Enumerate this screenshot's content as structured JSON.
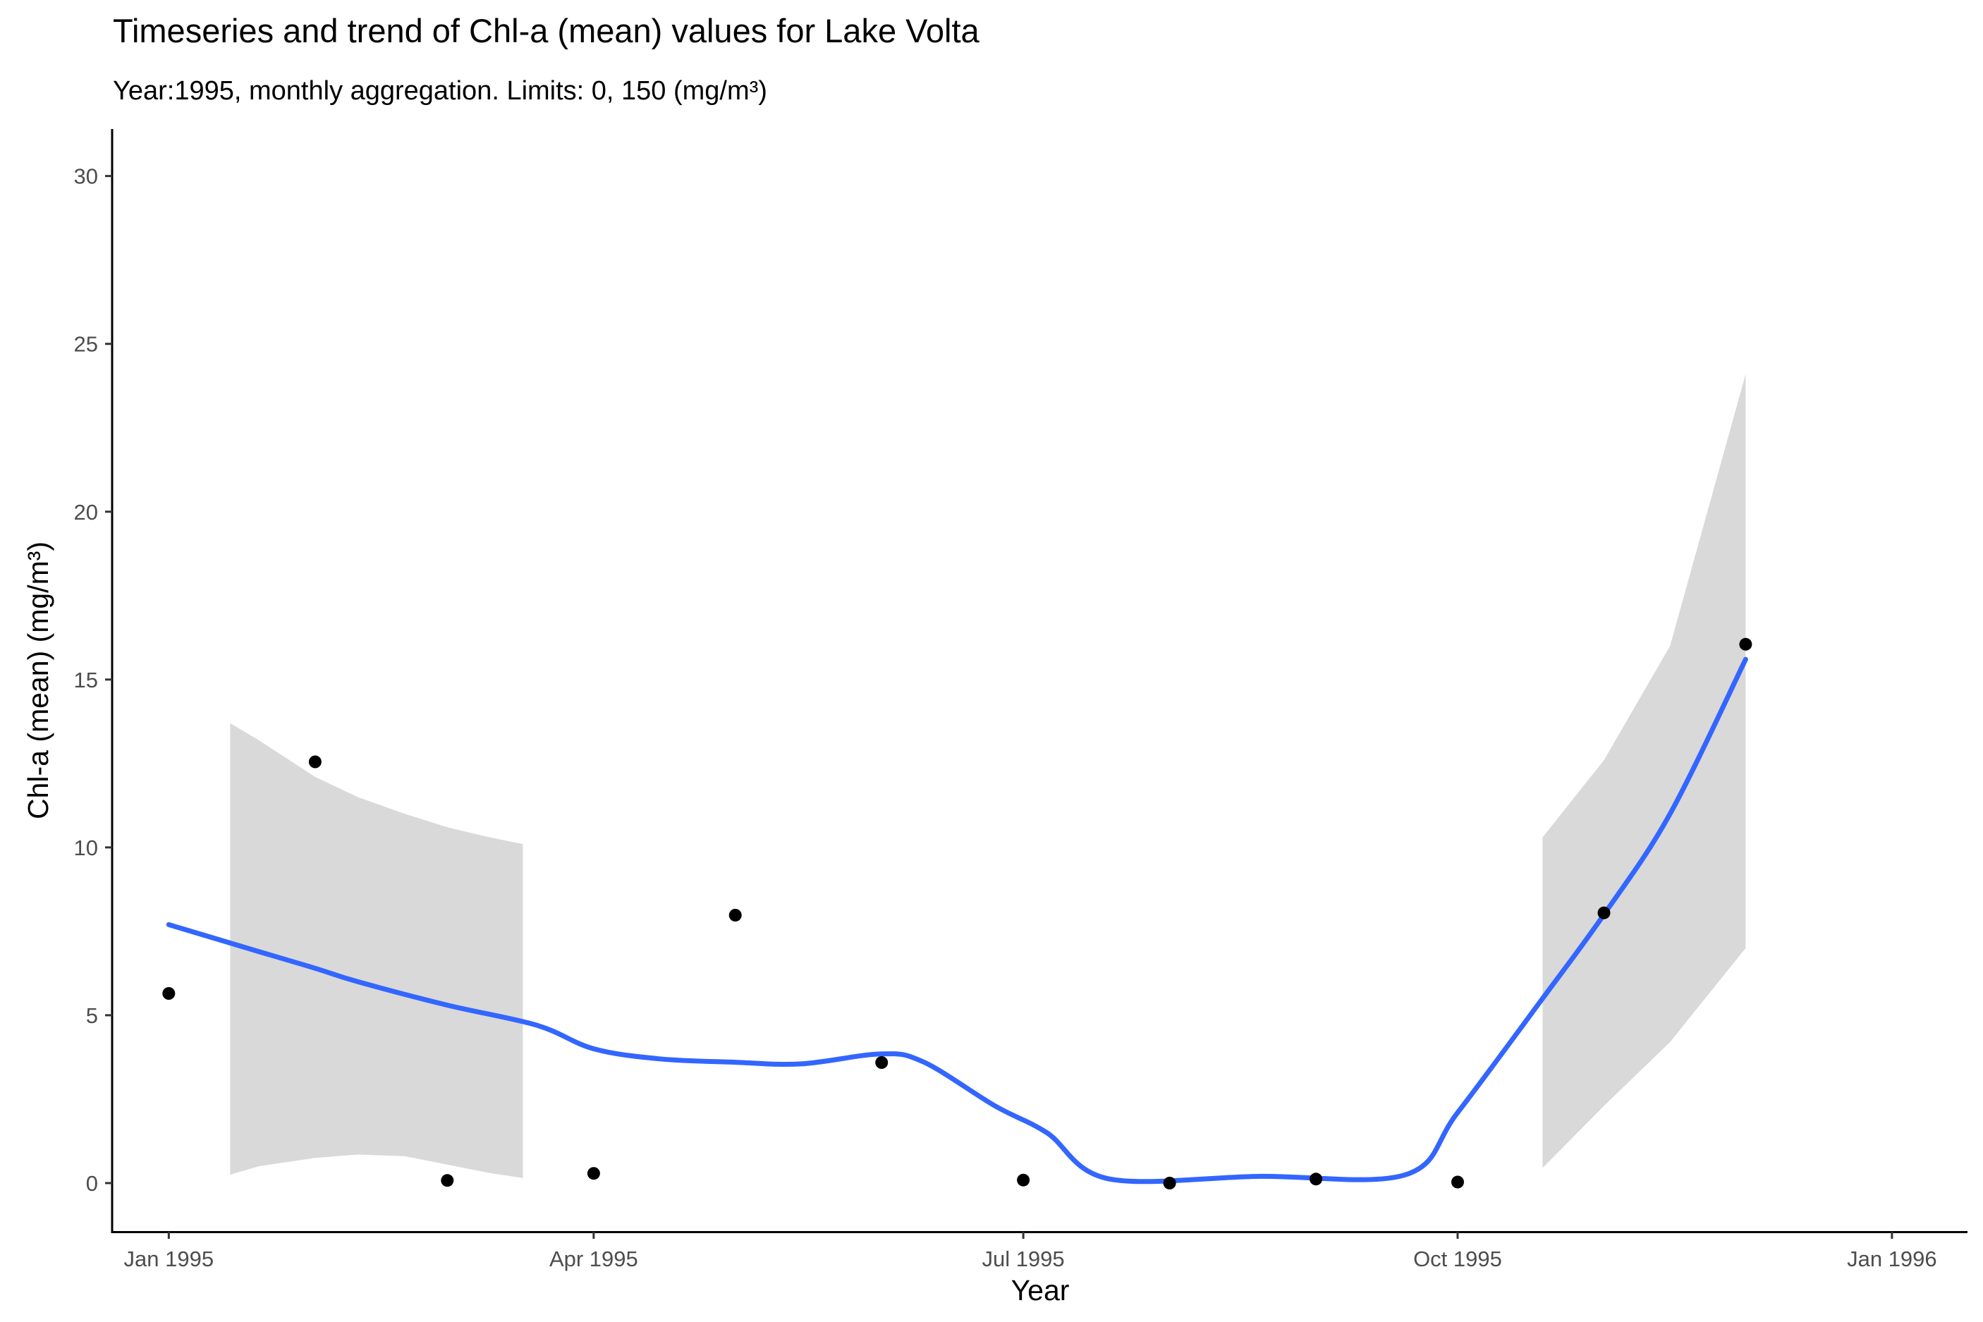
{
  "chart_data": {
    "type": "scatter",
    "title": "Timeseries and trend of Chl-a (mean) values for Lake Volta",
    "subtitle": "Year:1995, monthly aggregation. Limits: 0, 150 (mg/m³)",
    "xlabel": "Year",
    "ylabel": "Chl-a (mean) (mg/m³)",
    "xlim": [
      "1994-12-20",
      "1996-01-17"
    ],
    "ylim": [
      -1.45,
      31.4
    ],
    "x_ticks": [
      {
        "date": "1995-01-01",
        "label": "Jan 1995"
      },
      {
        "date": "1995-04-01",
        "label": "Apr 1995"
      },
      {
        "date": "1995-07-01",
        "label": "Jul 1995"
      },
      {
        "date": "1995-10-01",
        "label": "Oct 1995"
      },
      {
        "date": "1996-01-01",
        "label": "Jan 1996"
      }
    ],
    "y_ticks": [
      0,
      5,
      10,
      15,
      20,
      25,
      30
    ],
    "grid": false,
    "colors": {
      "points": "#000000",
      "trend_line": "#3366FF",
      "confidence_band": "#d9d9d9",
      "axis": "#000000",
      "tick_label": "#4d4d4d"
    },
    "points": [
      {
        "x": "1995-01-01",
        "y": 5.65
      },
      {
        "x": "1995-02-01",
        "y": 12.55
      },
      {
        "x": "1995-03-01",
        "y": 0.08
      },
      {
        "x": "1995-04-01",
        "y": 0.29
      },
      {
        "x": "1995-05-01",
        "y": 7.98
      },
      {
        "x": "1995-06-01",
        "y": 3.59
      },
      {
        "x": "1995-07-01",
        "y": 0.09
      },
      {
        "x": "1995-08-01",
        "y": 0.0
      },
      {
        "x": "1995-09-01",
        "y": 0.12
      },
      {
        "x": "1995-10-01",
        "y": 0.03
      },
      {
        "x": "1995-11-01",
        "y": 8.05
      },
      {
        "x": "1995-12-01",
        "y": 16.05
      }
    ],
    "trend": [
      {
        "x": "1995-01-01",
        "y": 7.7
      },
      {
        "x": "1995-01-20",
        "y": 6.9
      },
      {
        "x": "1995-02-01",
        "y": 6.4
      },
      {
        "x": "1995-02-10",
        "y": 6.0
      },
      {
        "x": "1995-03-01",
        "y": 5.3
      },
      {
        "x": "1995-03-20",
        "y": 4.7
      },
      {
        "x": "1995-04-01",
        "y": 4.0
      },
      {
        "x": "1995-04-15",
        "y": 3.7
      },
      {
        "x": "1995-05-01",
        "y": 3.6
      },
      {
        "x": "1995-05-15",
        "y": 3.55
      },
      {
        "x": "1995-06-01",
        "y": 3.85
      },
      {
        "x": "1995-06-10",
        "y": 3.6
      },
      {
        "x": "1995-06-25",
        "y": 2.3
      },
      {
        "x": "1995-07-06",
        "y": 1.5
      },
      {
        "x": "1995-07-19",
        "y": 0.13
      },
      {
        "x": "1995-08-20",
        "y": 0.2
      },
      {
        "x": "1995-09-20",
        "y": 0.25
      },
      {
        "x": "1995-10-01",
        "y": 2.1
      },
      {
        "x": "1995-10-19",
        "y": 5.5
      },
      {
        "x": "1995-11-01",
        "y": 8.0
      },
      {
        "x": "1995-11-15",
        "y": 11.0
      },
      {
        "x": "1995-12-01",
        "y": 15.6
      }
    ],
    "confidence_band": [
      {
        "x": "1995-01-14",
        "lower": 0.25,
        "upper": 13.7
      },
      {
        "x": "1995-01-20",
        "lower": 0.5,
        "upper": 13.2
      },
      {
        "x": "1995-02-01",
        "lower": 0.75,
        "upper": 12.1
      },
      {
        "x": "1995-02-10",
        "lower": 0.85,
        "upper": 11.5
      },
      {
        "x": "1995-02-20",
        "lower": 0.8,
        "upper": 11.0
      },
      {
        "x": "1995-03-01",
        "lower": 0.55,
        "upper": 10.6
      },
      {
        "x": "1995-03-10",
        "lower": 0.3,
        "upper": 10.3
      },
      {
        "x": "1995-03-17",
        "lower": 0.15,
        "upper": 10.1
      },
      {
        "x": "1995-10-19",
        "lower": 0.45,
        "upper": 10.3
      },
      {
        "x": "1995-11-01",
        "lower": 2.3,
        "upper": 12.6
      },
      {
        "x": "1995-11-15",
        "lower": 4.2,
        "upper": 16.0
      },
      {
        "x": "1995-12-01",
        "lower": 7.0,
        "upper": 24.1
      }
    ]
  }
}
